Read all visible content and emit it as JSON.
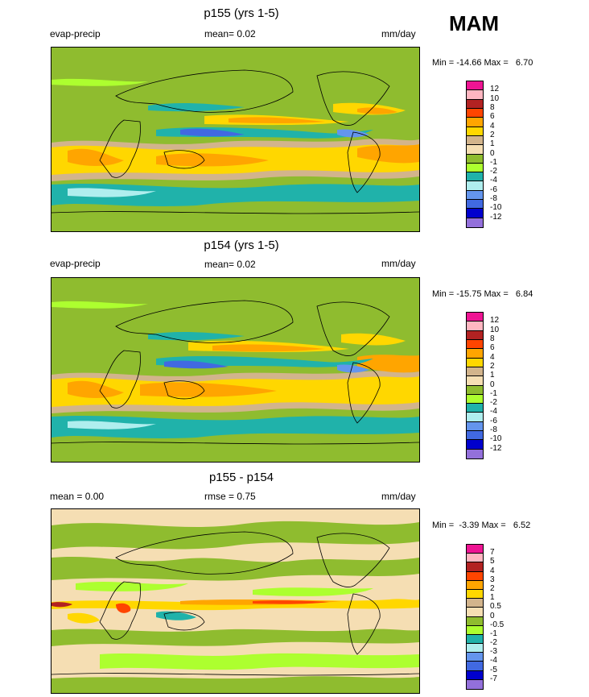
{
  "season": "MAM",
  "chart_data": [
    {
      "type": "heatmap",
      "title": "p155 (yrs 1-5)",
      "left_label": "evap-precip",
      "center_label": "mean=  0.02",
      "units": "mm/day",
      "stats": "Min = -14.66 Max =   6.70",
      "colorbar": {
        "levels": [
          "12",
          "10",
          "8",
          "6",
          "4",
          "2",
          "1",
          "0",
          "-1",
          "-2",
          "-4",
          "-6",
          "-8",
          "-10",
          "-12"
        ],
        "colors": [
          "#ee1493",
          "#ffb6c1",
          "#b22222",
          "#ff4500",
          "#ffa500",
          "#ffd700",
          "#d2b48c",
          "#f5deb3",
          "#8fbc2f",
          "#adff2f",
          "#20b2aa",
          "#afeeee",
          "#6495ed",
          "#4169e1",
          "#0000cd",
          "#9370db"
        ]
      }
    },
    {
      "type": "heatmap",
      "title": "p154 (yrs 1-5)",
      "left_label": "evap-precip",
      "center_label": "mean=  0.02",
      "units": "mm/day",
      "stats": "Min = -15.75 Max =   6.84",
      "colorbar": {
        "levels": [
          "12",
          "10",
          "8",
          "6",
          "4",
          "2",
          "1",
          "0",
          "-1",
          "-2",
          "-4",
          "-6",
          "-8",
          "-10",
          "-12"
        ],
        "colors": [
          "#ee1493",
          "#ffb6c1",
          "#b22222",
          "#ff4500",
          "#ffa500",
          "#ffd700",
          "#d2b48c",
          "#f5deb3",
          "#8fbc2f",
          "#adff2f",
          "#20b2aa",
          "#afeeee",
          "#6495ed",
          "#4169e1",
          "#0000cd",
          "#9370db"
        ]
      }
    },
    {
      "type": "heatmap",
      "title": "p155 - p154",
      "left_label": "mean =   0.00",
      "center_label": "rmse =   0.75",
      "units": "mm/day",
      "stats": "Min =  -3.39 Max =   6.52",
      "colorbar": {
        "levels": [
          "7",
          "5",
          "4",
          "3",
          "2",
          "1",
          "0.5",
          "0",
          "-0.5",
          "-1",
          "-2",
          "-3",
          "-4",
          "-5",
          "-7"
        ],
        "colors": [
          "#ee1493",
          "#ffb6c1",
          "#b22222",
          "#ff4500",
          "#ffa500",
          "#ffd700",
          "#d2b48c",
          "#f5deb3",
          "#8fbc2f",
          "#adff2f",
          "#20b2aa",
          "#afeeee",
          "#6495ed",
          "#4169e1",
          "#0000cd",
          "#9370db"
        ]
      }
    }
  ]
}
